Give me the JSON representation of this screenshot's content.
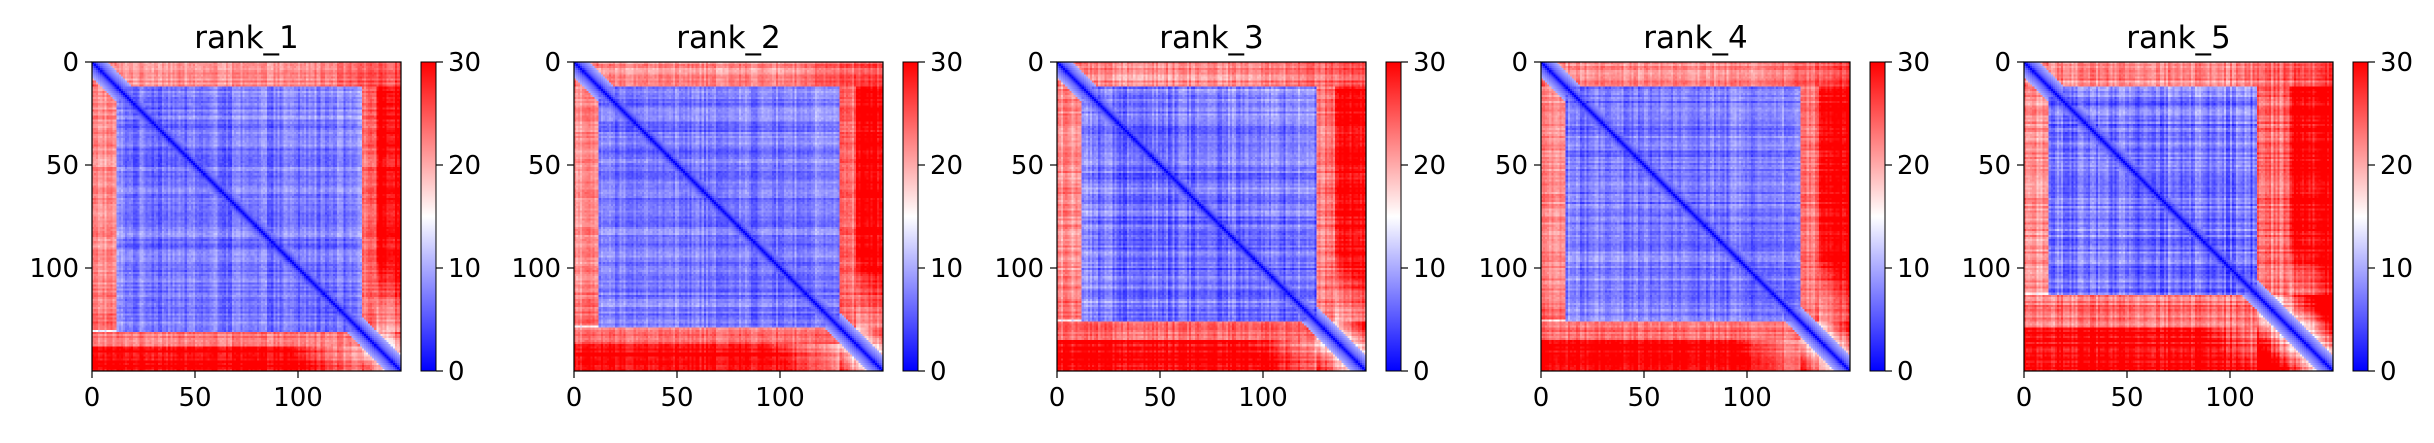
{
  "colors": {
    "low": "#0000ff",
    "mid": "#ffffff",
    "high": "#ff0000",
    "frame": "#000000"
  },
  "chart_data": [
    {
      "type": "heatmap",
      "title": "rank_1",
      "size": 150,
      "x_ticks": [
        "0",
        "50",
        "100"
      ],
      "y_ticks": [
        "0",
        "50",
        "100"
      ],
      "x_tick_values": [
        0,
        50,
        100
      ],
      "y_tick_values": [
        0,
        50,
        100
      ],
      "colorbar": {
        "min": 0,
        "max": 30,
        "ticks": [
          "0",
          "10",
          "20",
          "30"
        ],
        "tick_values": [
          0,
          10,
          20,
          30
        ],
        "colormap": "bwr"
      },
      "core_start": 12,
      "core_end": 130,
      "right_start": 137,
      "noise": 0.06
    },
    {
      "type": "heatmap",
      "title": "rank_2",
      "size": 150,
      "x_ticks": [
        "0",
        "50",
        "100"
      ],
      "y_ticks": [
        "0",
        "50",
        "100"
      ],
      "x_tick_values": [
        0,
        50,
        100
      ],
      "y_tick_values": [
        0,
        50,
        100
      ],
      "colorbar": {
        "min": 0,
        "max": 30,
        "ticks": [
          "0",
          "10",
          "20",
          "30"
        ],
        "tick_values": [
          0,
          10,
          20,
          30
        ],
        "colormap": "bwr"
      },
      "core_start": 12,
      "core_end": 128,
      "right_start": 136,
      "noise": 0.06
    },
    {
      "type": "heatmap",
      "title": "rank_3",
      "size": 150,
      "x_ticks": [
        "0",
        "50",
        "100"
      ],
      "y_ticks": [
        "0",
        "50",
        "100"
      ],
      "x_tick_values": [
        0,
        50,
        100
      ],
      "y_tick_values": [
        0,
        50,
        100
      ],
      "colorbar": {
        "min": 0,
        "max": 30,
        "ticks": [
          "0",
          "10",
          "20",
          "30"
        ],
        "tick_values": [
          0,
          10,
          20,
          30
        ],
        "colormap": "bwr"
      },
      "core_start": 12,
      "core_end": 125,
      "right_start": 134,
      "noise": 0.07
    },
    {
      "type": "heatmap",
      "title": "rank_4",
      "size": 150,
      "x_ticks": [
        "0",
        "50",
        "100"
      ],
      "y_ticks": [
        "0",
        "50",
        "100"
      ],
      "x_tick_values": [
        0,
        50,
        100
      ],
      "y_tick_values": [
        0,
        50,
        100
      ],
      "colorbar": {
        "min": 0,
        "max": 30,
        "ticks": [
          "0",
          "10",
          "20",
          "30"
        ],
        "tick_values": [
          0,
          10,
          20,
          30
        ],
        "colormap": "bwr"
      },
      "core_start": 12,
      "core_end": 125,
      "right_start": 134,
      "noise": 0.06
    },
    {
      "type": "heatmap",
      "title": "rank_5",
      "size": 150,
      "x_ticks": [
        "0",
        "50",
        "100"
      ],
      "y_ticks": [
        "0",
        "50",
        "100"
      ],
      "x_tick_values": [
        0,
        50,
        100
      ],
      "y_tick_values": [
        0,
        50,
        100
      ],
      "colorbar": {
        "min": 0,
        "max": 30,
        "ticks": [
          "0",
          "10",
          "20",
          "30"
        ],
        "tick_values": [
          0,
          10,
          20,
          30
        ],
        "colormap": "bwr"
      },
      "core_start": 12,
      "core_end": 112,
      "right_start": 128,
      "noise": 0.08
    }
  ]
}
